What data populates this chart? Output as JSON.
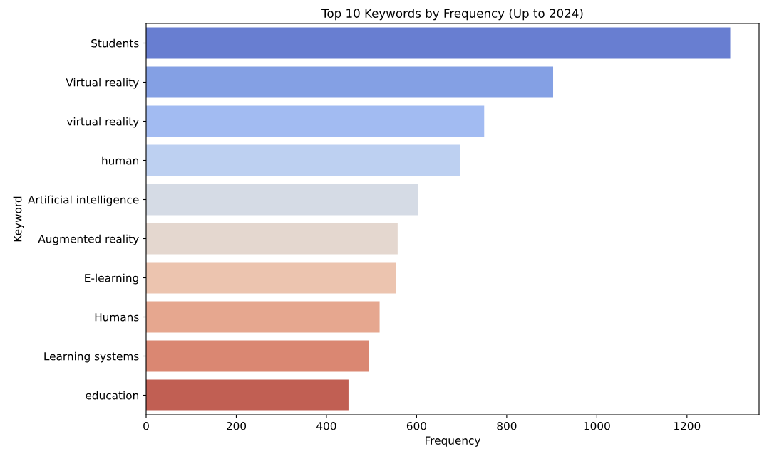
{
  "chart_data": {
    "type": "bar",
    "orientation": "horizontal",
    "title": "Top 10 Keywords by Frequency (Up to 2024)",
    "xlabel": "Frequency",
    "ylabel": "Keyword",
    "categories": [
      "Students",
      "Virtual reality",
      "virtual reality",
      "human",
      "Artificial intelligence",
      "Augmented reality",
      "E-learning",
      "Humans",
      "Learning systems",
      "education"
    ],
    "values": [
      1296,
      903,
      750,
      697,
      604,
      558,
      555,
      518,
      494,
      449
    ],
    "colors": [
      "#687ed1",
      "#84a0e4",
      "#a2bbf2",
      "#bdd0f1",
      "#d5dbe5",
      "#e4d7cf",
      "#ecc4af",
      "#e6a78f",
      "#da8772",
      "#c15f53"
    ],
    "xlim": [
      0,
      1360
    ],
    "xticks": [
      0,
      200,
      400,
      600,
      800,
      1000,
      1200
    ],
    "grid": false,
    "legend": false
  }
}
